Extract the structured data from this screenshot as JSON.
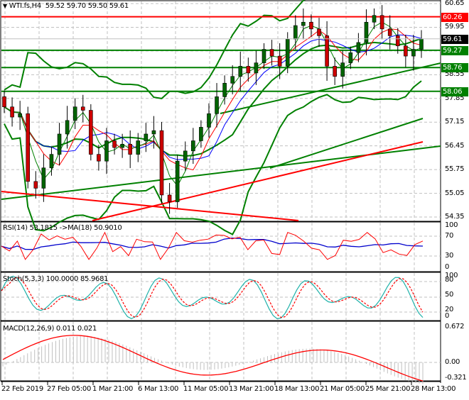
{
  "header": {
    "symbol": "WTI.fs,H4",
    "ohlc": "59.52 59.70 59.50 59.61",
    "collapse_icon": "triangle-down-icon"
  },
  "colors": {
    "background": "#ffffff",
    "grid": "#c0c0c0",
    "bull_candle": "#006400",
    "bear_candle": "#cc0000",
    "wick": "#000000",
    "bollinger": "#008000",
    "support_line": "#008000",
    "resistance_line": "#ff0000",
    "ma_fast": "#008000",
    "ma_mid": "#ff0000",
    "ma_slow": "#0000ff",
    "rsi_line": "#ff0000",
    "rsi_ma": "#0000cc",
    "stoch_main": "#20b2aa",
    "stoch_signal": "#ff0000",
    "macd_hist": "#c0c0c0",
    "macd_signal": "#ff0000",
    "tag_red": "#ff0000",
    "tag_green": "#008000",
    "tag_black": "#000000"
  },
  "price_axis": {
    "labels": [
      "60.65",
      "59.95",
      "58.55",
      "57.85",
      "57.15",
      "56.45",
      "55.75",
      "55.05",
      "54.35"
    ],
    "tags": [
      {
        "value": "60.26",
        "color": "red"
      },
      {
        "value": "59.61",
        "color": "black"
      },
      {
        "value": "59.27",
        "color": "green"
      },
      {
        "value": "58.76",
        "color": "green"
      },
      {
        "value": "58.06",
        "color": "green"
      }
    ]
  },
  "time_axis": {
    "labels": [
      "22 Feb 2019",
      "27 Feb 05:00",
      "1 Mar 21:00",
      "6 Mar 13:00",
      "11 Mar 05:00",
      "13 Mar 21:00",
      "18 Mar 13:00",
      "21 Mar 05:00",
      "25 Mar 21:00",
      "28 Mar 13:00"
    ]
  },
  "rsi_panel": {
    "title": "RSI(14) 53.1815  ->MA(18) 50.9010",
    "levels": [
      "100",
      "70",
      "30",
      "0"
    ]
  },
  "stoch_panel": {
    "title": "Stoch(5,3,3) 100.0000 85.9681",
    "levels": [
      "100",
      "80",
      "50",
      "20",
      "0"
    ]
  },
  "macd_panel": {
    "title": "MACD(12,26,9) 0.011 0.021",
    "levels": [
      "0.672",
      "0.00",
      "-0.321"
    ]
  },
  "chart_data": [
    {
      "type": "candlestick",
      "title": "WTI.fs,H4",
      "ohlc_last": {
        "open": 59.52,
        "high": 59.7,
        "low": 59.5,
        "close": 59.61
      },
      "ylim": [
        54.35,
        60.65
      ],
      "x": [
        "22 Feb 2019",
        "27 Feb 05:00",
        "1 Mar 21:00",
        "6 Mar 13:00",
        "11 Mar 05:00",
        "13 Mar 21:00",
        "18 Mar 13:00",
        "21 Mar 05:00",
        "25 Mar 21:00",
        "28 Mar 13:00"
      ],
      "horizontal_levels": [
        {
          "value": 60.26,
          "color": "red",
          "label": "resistance"
        },
        {
          "value": 59.27,
          "color": "green",
          "label": "support"
        },
        {
          "value": 58.76,
          "color": "green",
          "label": "support"
        },
        {
          "value": 58.06,
          "color": "green",
          "label": "support"
        }
      ],
      "close_approx": [
        57.6,
        57.3,
        57.4,
        55.4,
        55.2,
        55.8,
        56.2,
        56.8,
        57.2,
        57.6,
        57.5,
        56.2,
        56.0,
        56.6,
        56.4,
        56.5,
        56.2,
        56.6,
        56.8,
        56.9,
        55.0,
        54.8,
        56.0,
        56.3,
        56.6,
        57.0,
        57.4,
        57.9,
        58.3,
        58.5,
        58.8,
        58.6,
        58.9,
        59.3,
        59.1,
        58.8,
        59.6,
        60.0,
        60.1,
        59.9,
        59.7,
        58.8,
        58.5,
        58.9,
        59.2,
        59.5,
        60.1,
        60.3,
        59.9,
        59.7,
        59.4,
        59.1,
        59.3,
        59.61
      ],
      "bollinger_bands": {
        "upper_end": 60.7,
        "middle_end": 59.3,
        "lower_end": 58.3
      }
    },
    {
      "type": "line",
      "title": "RSI(14)",
      "series": [
        {
          "name": "RSI(14)",
          "last": 53.1815
        },
        {
          "name": "MA(18)",
          "last": 50.901
        }
      ],
      "ylim": [
        0,
        100
      ],
      "levels": [
        30,
        70
      ]
    },
    {
      "type": "line",
      "title": "Stoch(5,3,3)",
      "series": [
        {
          "name": "%K",
          "last": 100.0
        },
        {
          "name": "%D",
          "last": 85.9681
        }
      ],
      "ylim": [
        0,
        100
      ],
      "levels": [
        20,
        50,
        80
      ]
    },
    {
      "type": "bar",
      "title": "MACD(12,26,9)",
      "series": [
        {
          "name": "MACD",
          "last": 0.011
        },
        {
          "name": "Signal",
          "last": 0.021
        }
      ],
      "ylim": [
        -0.321,
        0.672
      ]
    }
  ]
}
